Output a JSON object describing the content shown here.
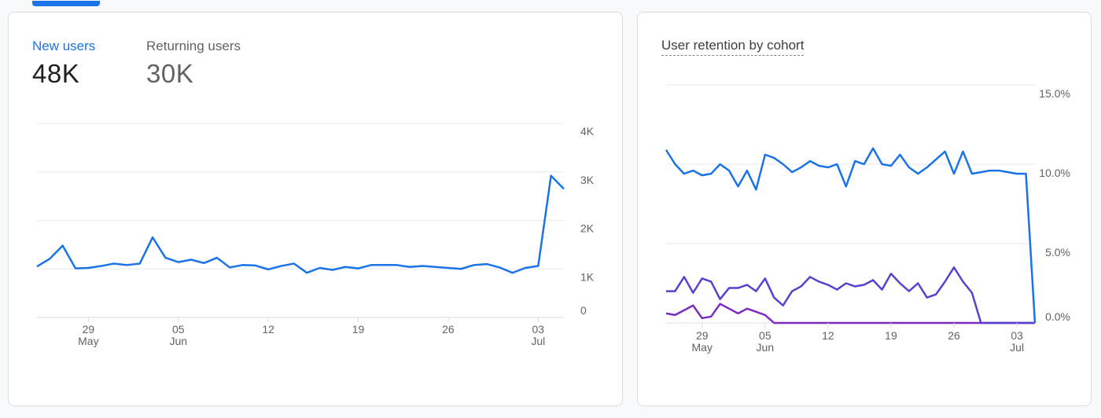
{
  "left_card": {
    "metrics": [
      {
        "label": "New users",
        "value": "48K",
        "active": true
      },
      {
        "label": "Returning users",
        "value": "30K",
        "active": false
      }
    ]
  },
  "right_card": {
    "title": "User retention by cohort"
  },
  "colors": {
    "accent": "#1a73e8",
    "line_blue": "#1a73e8",
    "line_indigo": "#5b3fcf",
    "line_purple": "#7b2cbf",
    "grid": "#e8eaed",
    "axis_text": "#5f6368"
  },
  "chart_data": [
    {
      "type": "line",
      "title": "",
      "xlabel": "",
      "ylabel": "",
      "x_ticks": [
        {
          "day": "29",
          "month": "May"
        },
        {
          "day": "05",
          "month": "Jun"
        },
        {
          "day": "12",
          "month": ""
        },
        {
          "day": "19",
          "month": ""
        },
        {
          "day": "26",
          "month": ""
        },
        {
          "day": "03",
          "month": "Jul"
        }
      ],
      "y_ticks": [
        "0",
        "1K",
        "2K",
        "3K",
        "4K"
      ],
      "ylim": [
        0,
        4000
      ],
      "grid": true,
      "series": [
        {
          "values": [
            1050,
            1210,
            1480,
            1010,
            1020,
            1060,
            1110,
            1080,
            1110,
            1650,
            1230,
            1140,
            1190,
            1120,
            1230,
            1030,
            1080,
            1070,
            990,
            1060,
            1110,
            920,
            1020,
            980,
            1040,
            1010,
            1080,
            1080,
            1080,
            1040,
            1060,
            1040,
            1020,
            1000,
            1080,
            1100,
            1030,
            920,
            1020,
            1060,
            2920,
            2650
          ]
        }
      ]
    },
    {
      "type": "line",
      "title": "User retention by cohort",
      "xlabel": "",
      "ylabel": "",
      "x_ticks": [
        {
          "day": "29",
          "month": "May"
        },
        {
          "day": "05",
          "month": "Jun"
        },
        {
          "day": "12",
          "month": ""
        },
        {
          "day": "19",
          "month": ""
        },
        {
          "day": "26",
          "month": ""
        },
        {
          "day": "03",
          "month": "Jul"
        }
      ],
      "y_ticks": [
        "0.0%",
        "5.0%",
        "10.0%",
        "15.0%"
      ],
      "ylim": [
        0,
        15
      ],
      "grid": true,
      "series": [
        {
          "values": [
            10.9,
            10.0,
            9.4,
            9.6,
            9.3,
            9.4,
            10.0,
            9.6,
            8.6,
            9.6,
            8.4,
            10.6,
            10.4,
            10.0,
            9.5,
            9.8,
            10.2,
            9.9,
            9.8,
            10.0,
            8.6,
            10.2,
            10.0,
            11.0,
            10.0,
            9.9,
            10.6,
            9.8,
            9.4,
            9.8,
            10.3,
            10.8,
            9.4,
            10.8,
            9.4,
            9.5,
            9.6,
            9.6,
            9.5,
            9.4,
            9.4,
            0.0
          ]
        },
        {
          "values": [
            2.0,
            2.0,
            2.9,
            1.9,
            2.8,
            2.6,
            1.5,
            2.2,
            2.2,
            2.4,
            2.0,
            2.8,
            1.6,
            1.1,
            2.0,
            2.3,
            2.9,
            2.6,
            2.4,
            2.1,
            2.5,
            2.3,
            2.4,
            2.7,
            2.1,
            3.1,
            2.5,
            2.0,
            2.5,
            1.6,
            1.8,
            2.6,
            3.5,
            2.6,
            1.9,
            0.0,
            0.0,
            0.0,
            0.0,
            0.0,
            0.0,
            0.0
          ]
        },
        {
          "values": [
            0.6,
            0.5,
            0.8,
            1.1,
            0.3,
            0.4,
            1.2,
            0.9,
            0.6,
            0.9,
            0.7,
            0.5,
            0.0,
            0.0,
            0.0,
            0.0,
            0.0,
            0.0,
            0.0,
            0.0,
            0.0,
            0.0,
            0.0,
            0.0,
            0.0,
            0.0,
            0.0,
            0.0,
            0.0,
            0.0,
            0.0,
            0.0,
            0.0,
            0.0,
            0.0,
            0.0,
            0.0,
            0.0,
            0.0,
            0.0,
            0.0,
            0.0
          ]
        }
      ]
    }
  ]
}
